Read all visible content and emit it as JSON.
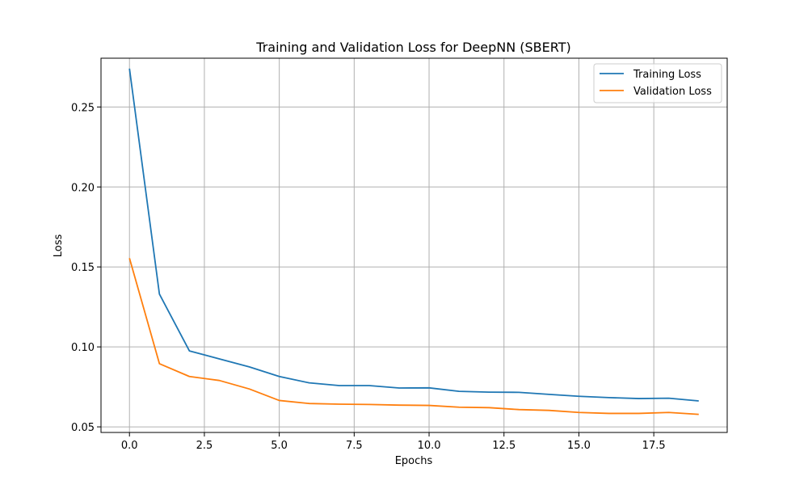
{
  "chart_data": {
    "type": "line",
    "title": "Training and Validation Loss for DeepNN (SBERT)",
    "xlabel": "Epochs",
    "ylabel": "Loss",
    "xlim": [
      -0.95,
      19.95
    ],
    "ylim": [
      0.0465,
      0.2805
    ],
    "xticks": [
      0.0,
      2.5,
      5.0,
      7.5,
      10.0,
      12.5,
      15.0,
      17.5
    ],
    "xtick_labels": [
      "0.0",
      "2.5",
      "5.0",
      "7.5",
      "10.0",
      "12.5",
      "15.0",
      "17.5"
    ],
    "yticks": [
      0.05,
      0.1,
      0.15,
      0.2,
      0.25
    ],
    "ytick_labels": [
      "0.05",
      "0.10",
      "0.15",
      "0.20",
      "0.25"
    ],
    "grid": true,
    "legend_position": "top-right",
    "x": [
      0,
      1,
      2,
      3,
      4,
      5,
      6,
      7,
      8,
      9,
      10,
      11,
      12,
      13,
      14,
      15,
      16,
      17,
      18,
      19
    ],
    "series": [
      {
        "name": "Training Loss",
        "color": "#1f77b4",
        "values": [
          0.274,
          0.133,
          0.0975,
          0.0925,
          0.0875,
          0.0815,
          0.0775,
          0.0758,
          0.0758,
          0.0743,
          0.0744,
          0.0722,
          0.0717,
          0.0716,
          0.0703,
          0.0691,
          0.0683,
          0.0677,
          0.0679,
          0.0662
        ]
      },
      {
        "name": "Validation Loss",
        "color": "#ff7f0e",
        "values": [
          0.1555,
          0.0895,
          0.0815,
          0.079,
          0.0737,
          0.0665,
          0.0646,
          0.0642,
          0.064,
          0.0636,
          0.0634,
          0.0623,
          0.062,
          0.0608,
          0.0603,
          0.059,
          0.0584,
          0.0584,
          0.059,
          0.0578
        ]
      }
    ]
  }
}
